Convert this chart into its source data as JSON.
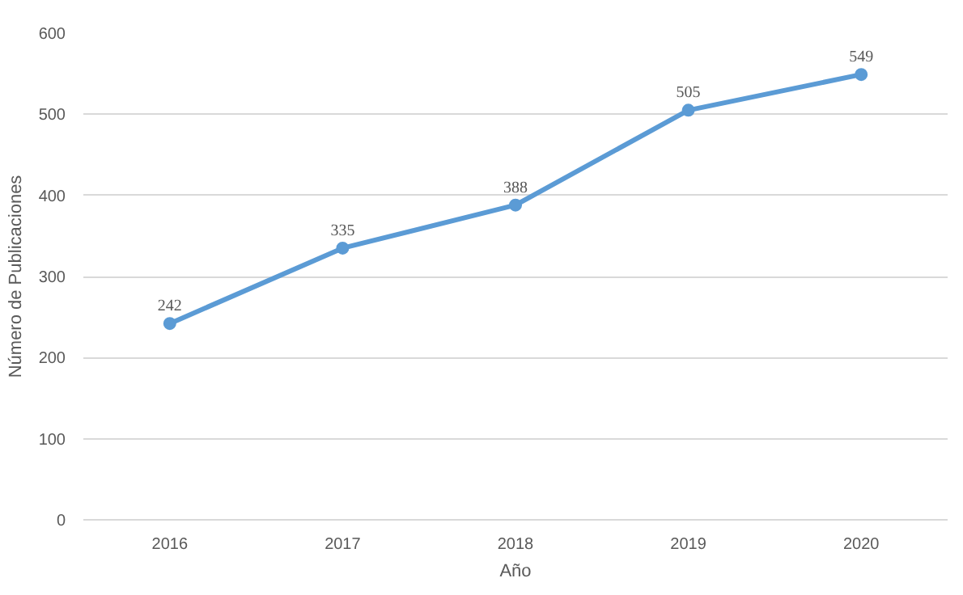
{
  "chart_data": {
    "type": "line",
    "xlabel": "Año",
    "ylabel": "Número de Publicaciones",
    "categories": [
      "2016",
      "2017",
      "2018",
      "2019",
      "2020"
    ],
    "series": [
      {
        "color": "#5b9bd5",
        "values": [
          242,
          335,
          388,
          505,
          549
        ]
      }
    ],
    "ylim": [
      0,
      600
    ],
    "yticks": [
      0,
      100,
      200,
      300,
      400,
      500,
      600
    ],
    "grid": "y",
    "marker": "circle",
    "data_labels": true
  }
}
